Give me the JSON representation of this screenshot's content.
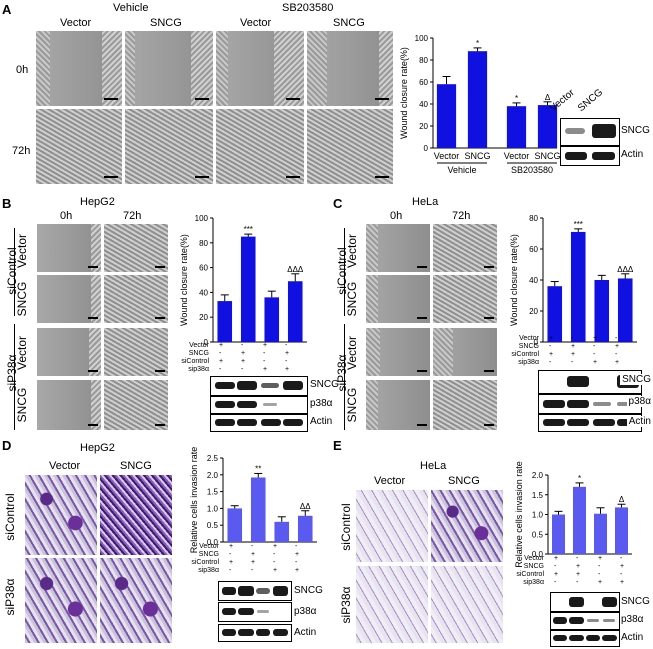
{
  "panels": {
    "A": {
      "letter": "A",
      "header_vehicle": "Vehicle",
      "header_sb": "SB203580",
      "cols": [
        "Vector",
        "SNCG",
        "Vector",
        "SNCG"
      ],
      "rows": [
        "0h",
        "72h"
      ]
    },
    "B": {
      "letter": "B",
      "title": "HepG2",
      "times": [
        "0h",
        "72h"
      ],
      "group1": "siControl",
      "group2": "siP38α",
      "rowlabels": [
        "Vector",
        "SNCG",
        "Vector",
        "SNCG"
      ]
    },
    "C": {
      "letter": "C",
      "title": "HeLa",
      "times": [
        "0h",
        "72h"
      ],
      "group1": "siControl",
      "group2": "siP38α",
      "rowlabels": [
        "Vector",
        "SNCG",
        "Vector",
        "SNCG"
      ]
    },
    "D": {
      "letter": "D",
      "title": "HepG2",
      "cols": [
        "Vector",
        "SNCG"
      ],
      "rows": [
        "siControl",
        "siP38α"
      ]
    },
    "E": {
      "letter": "E",
      "title": "HeLa",
      "cols": [
        "Vector",
        "SNCG"
      ],
      "rows": [
        "siControl",
        "siP38α"
      ]
    }
  },
  "blots": {
    "A": {
      "lanes": [
        "Vector",
        "SNCG"
      ],
      "rows": [
        "SNCG",
        "Actin"
      ]
    },
    "B": {
      "rows": [
        "SNCG",
        "p38α",
        "Actin"
      ]
    },
    "C": {
      "rows": [
        "SNCG",
        "p38α",
        "Actin"
      ]
    },
    "D": {
      "rows": [
        "SNCG",
        "p38α",
        "Actin"
      ]
    },
    "E": {
      "rows": [
        "SNCG",
        "p38α",
        "Actin"
      ]
    }
  },
  "treatment_rows": [
    "Vector",
    "SNCG",
    "siControl",
    "sip38α"
  ],
  "treatment_signs": [
    [
      "+",
      "-",
      "+",
      "-"
    ],
    [
      "-",
      "+",
      "-",
      "+"
    ],
    [
      "+",
      "+",
      "-",
      "-"
    ],
    [
      "-",
      "-",
      "+",
      "+"
    ]
  ],
  "chart_data": [
    {
      "type": "bar",
      "id": "A",
      "ylabel": "Wound closure rate(%)",
      "categories": [
        "Vector",
        "SNCG",
        "Vector",
        "SNCG"
      ],
      "groups": [
        "Vehicle",
        "SB203580"
      ],
      "values": [
        58,
        88,
        38,
        39
      ],
      "errors": [
        7,
        3,
        3,
        3
      ],
      "ylim": [
        0,
        100
      ],
      "yticks": [
        0,
        20,
        40,
        60,
        80,
        100
      ],
      "annotations": [
        "",
        "*",
        "*",
        "Δ"
      ],
      "color": "#1010e0"
    },
    {
      "type": "bar",
      "id": "B",
      "ylabel": "Wound closure rate(%)",
      "values": [
        33,
        85,
        36,
        49
      ],
      "errors": [
        5,
        2,
        5,
        6
      ],
      "ylim": [
        0,
        100
      ],
      "yticks": [
        0,
        20,
        40,
        60,
        80,
        100
      ],
      "annotations": [
        "",
        "***",
        "",
        "ΔΔΔ"
      ],
      "color": "#1010e0"
    },
    {
      "type": "bar",
      "id": "C",
      "ylabel": "Wound closure rate(%)",
      "values": [
        36,
        71,
        40,
        41
      ],
      "errors": [
        3,
        2,
        3,
        3
      ],
      "ylim": [
        0,
        80
      ],
      "yticks": [
        0,
        20,
        40,
        60,
        80
      ],
      "annotations": [
        "",
        "***",
        "",
        "ΔΔΔ"
      ],
      "color": "#1010e0"
    },
    {
      "type": "bar",
      "id": "D",
      "ylabel": "Relative cells invasion rate",
      "values": [
        1.0,
        1.92,
        0.6,
        0.78
      ],
      "errors": [
        0.08,
        0.12,
        0.15,
        0.15
      ],
      "ylim": [
        0,
        2.5
      ],
      "yticks": [
        0.0,
        0.5,
        1.0,
        1.5,
        2.0,
        2.5
      ],
      "annotations": [
        "",
        "**",
        "",
        "ΔΔ"
      ],
      "color": "#5a5af0"
    },
    {
      "type": "bar",
      "id": "E",
      "ylabel": "Relative cells invasion rate",
      "values": [
        1.0,
        1.7,
        1.02,
        1.18
      ],
      "errors": [
        0.08,
        0.1,
        0.15,
        0.08
      ],
      "ylim": [
        0,
        2.0
      ],
      "yticks": [
        0.0,
        0.5,
        1.0,
        1.5,
        2.0
      ],
      "annotations": [
        "",
        "*",
        "",
        "Δ"
      ],
      "color": "#5a5af0"
    }
  ]
}
